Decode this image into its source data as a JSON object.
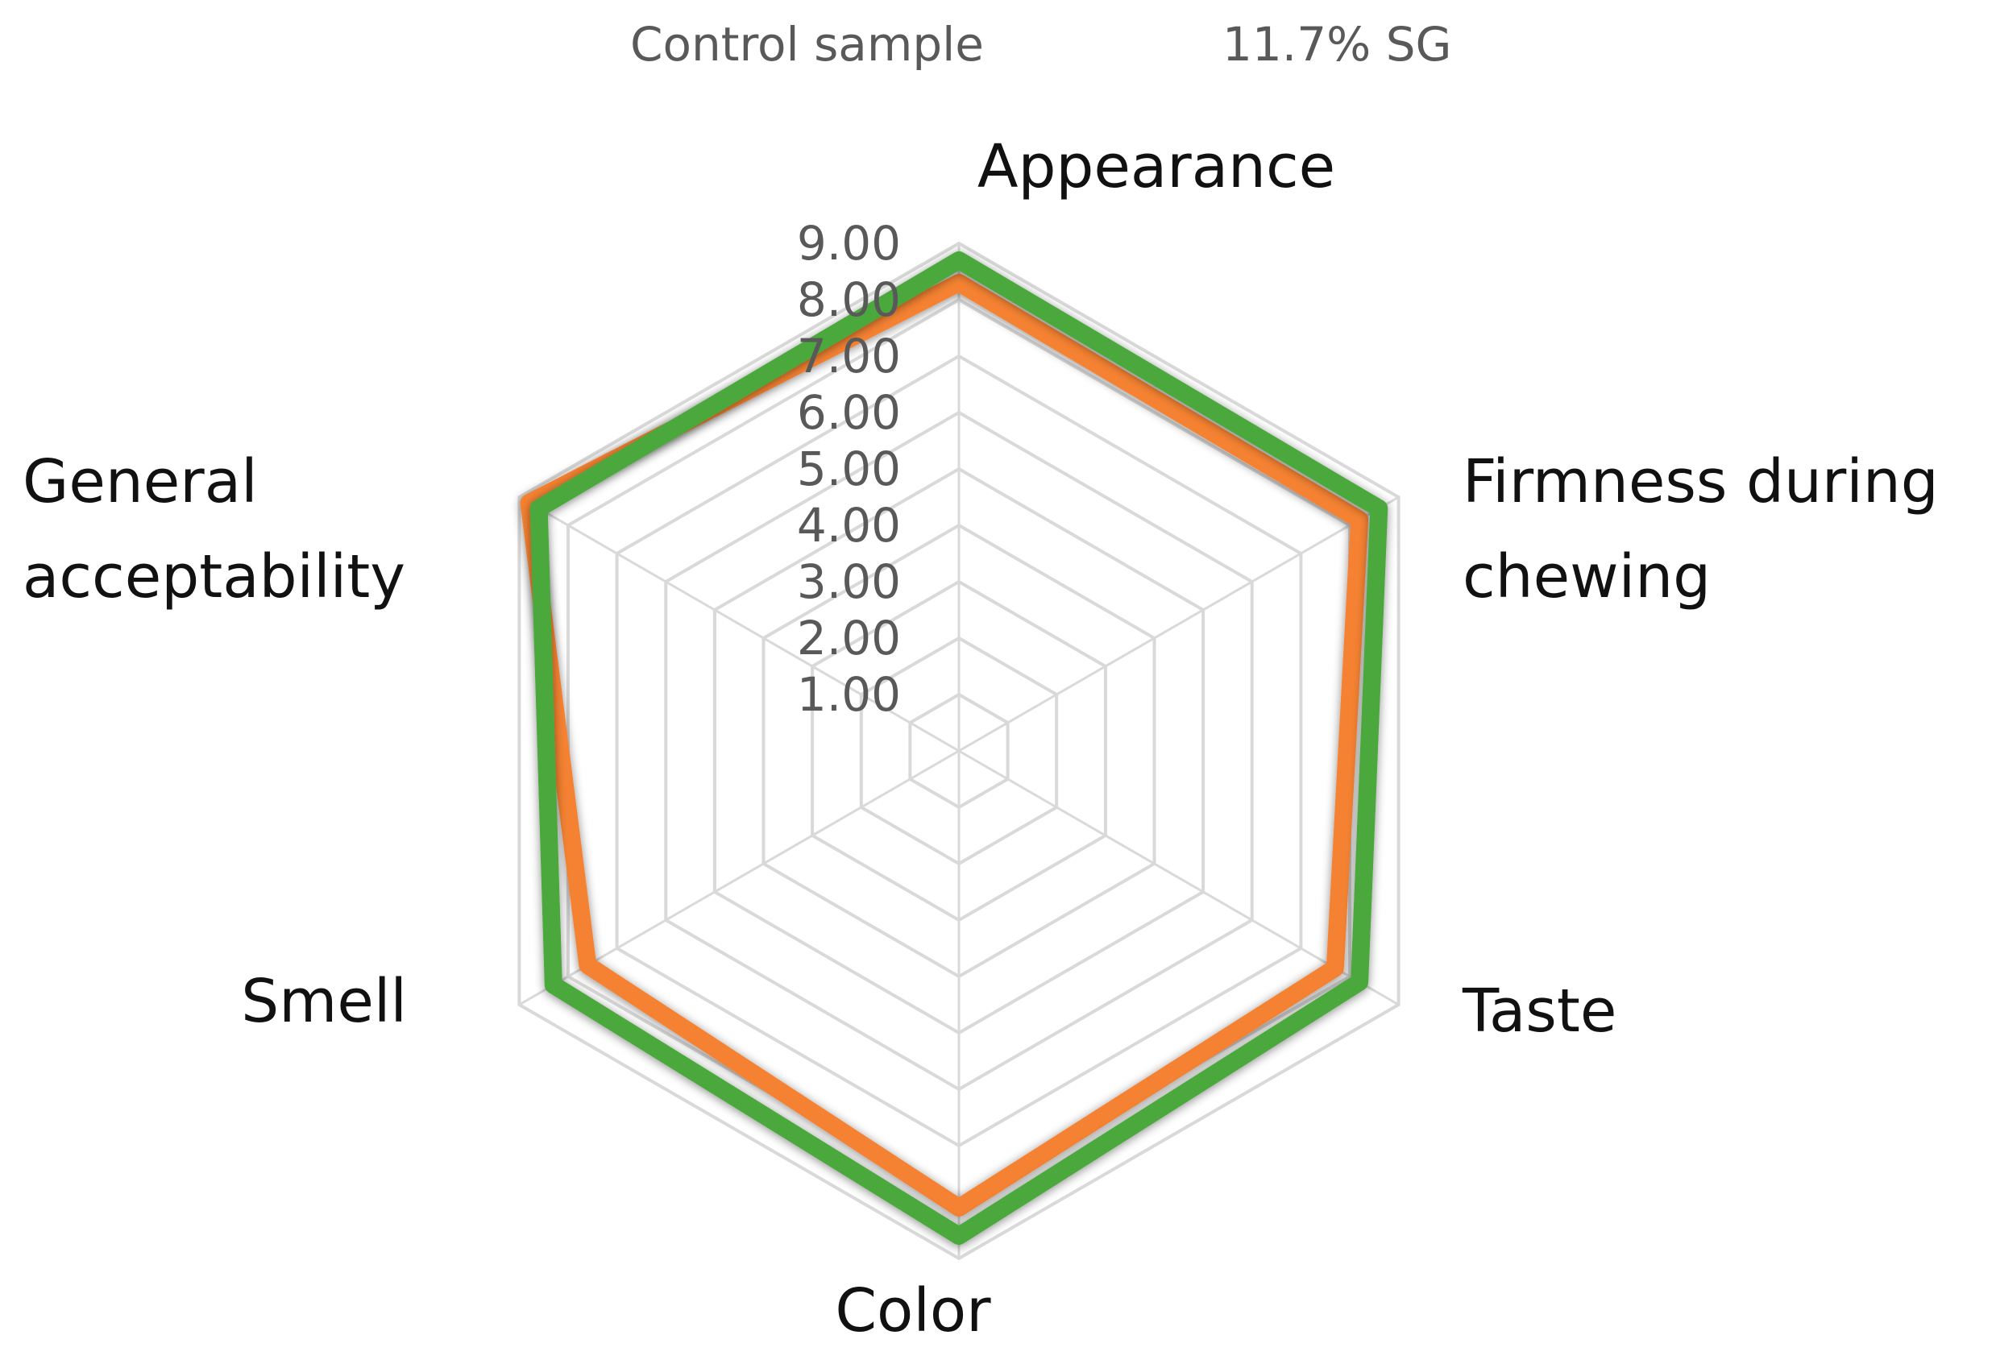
{
  "chart_data": {
    "type": "radar",
    "title": "",
    "categories": [
      "Appearance",
      "Firmness during chewing",
      "Taste",
      "Color",
      "Smell",
      "General acceptability"
    ],
    "category_label_lines": [
      [
        "Appearance"
      ],
      [
        "Firmness during",
        "chewing"
      ],
      [
        "Taste"
      ],
      [
        "Color"
      ],
      [
        "Smell"
      ],
      [
        "General",
        "acceptability"
      ]
    ],
    "rlim": [
      0,
      9
    ],
    "ticks": [
      "1.00",
      "2.00",
      "3.00",
      "4.00",
      "5.00",
      "6.00",
      "7.00",
      "8.00",
      "9.00"
    ],
    "series": [
      {
        "name": "Control sample",
        "color": "#F58232",
        "values": [
          8.3,
          8.2,
          7.7,
          8.1,
          7.6,
          8.8
        ]
      },
      {
        "name": "11.7% SG",
        "color": "#4CA83C",
        "values": [
          8.7,
          8.6,
          8.2,
          8.6,
          8.3,
          8.6
        ]
      }
    ],
    "legend_position": "top",
    "grid": true
  }
}
